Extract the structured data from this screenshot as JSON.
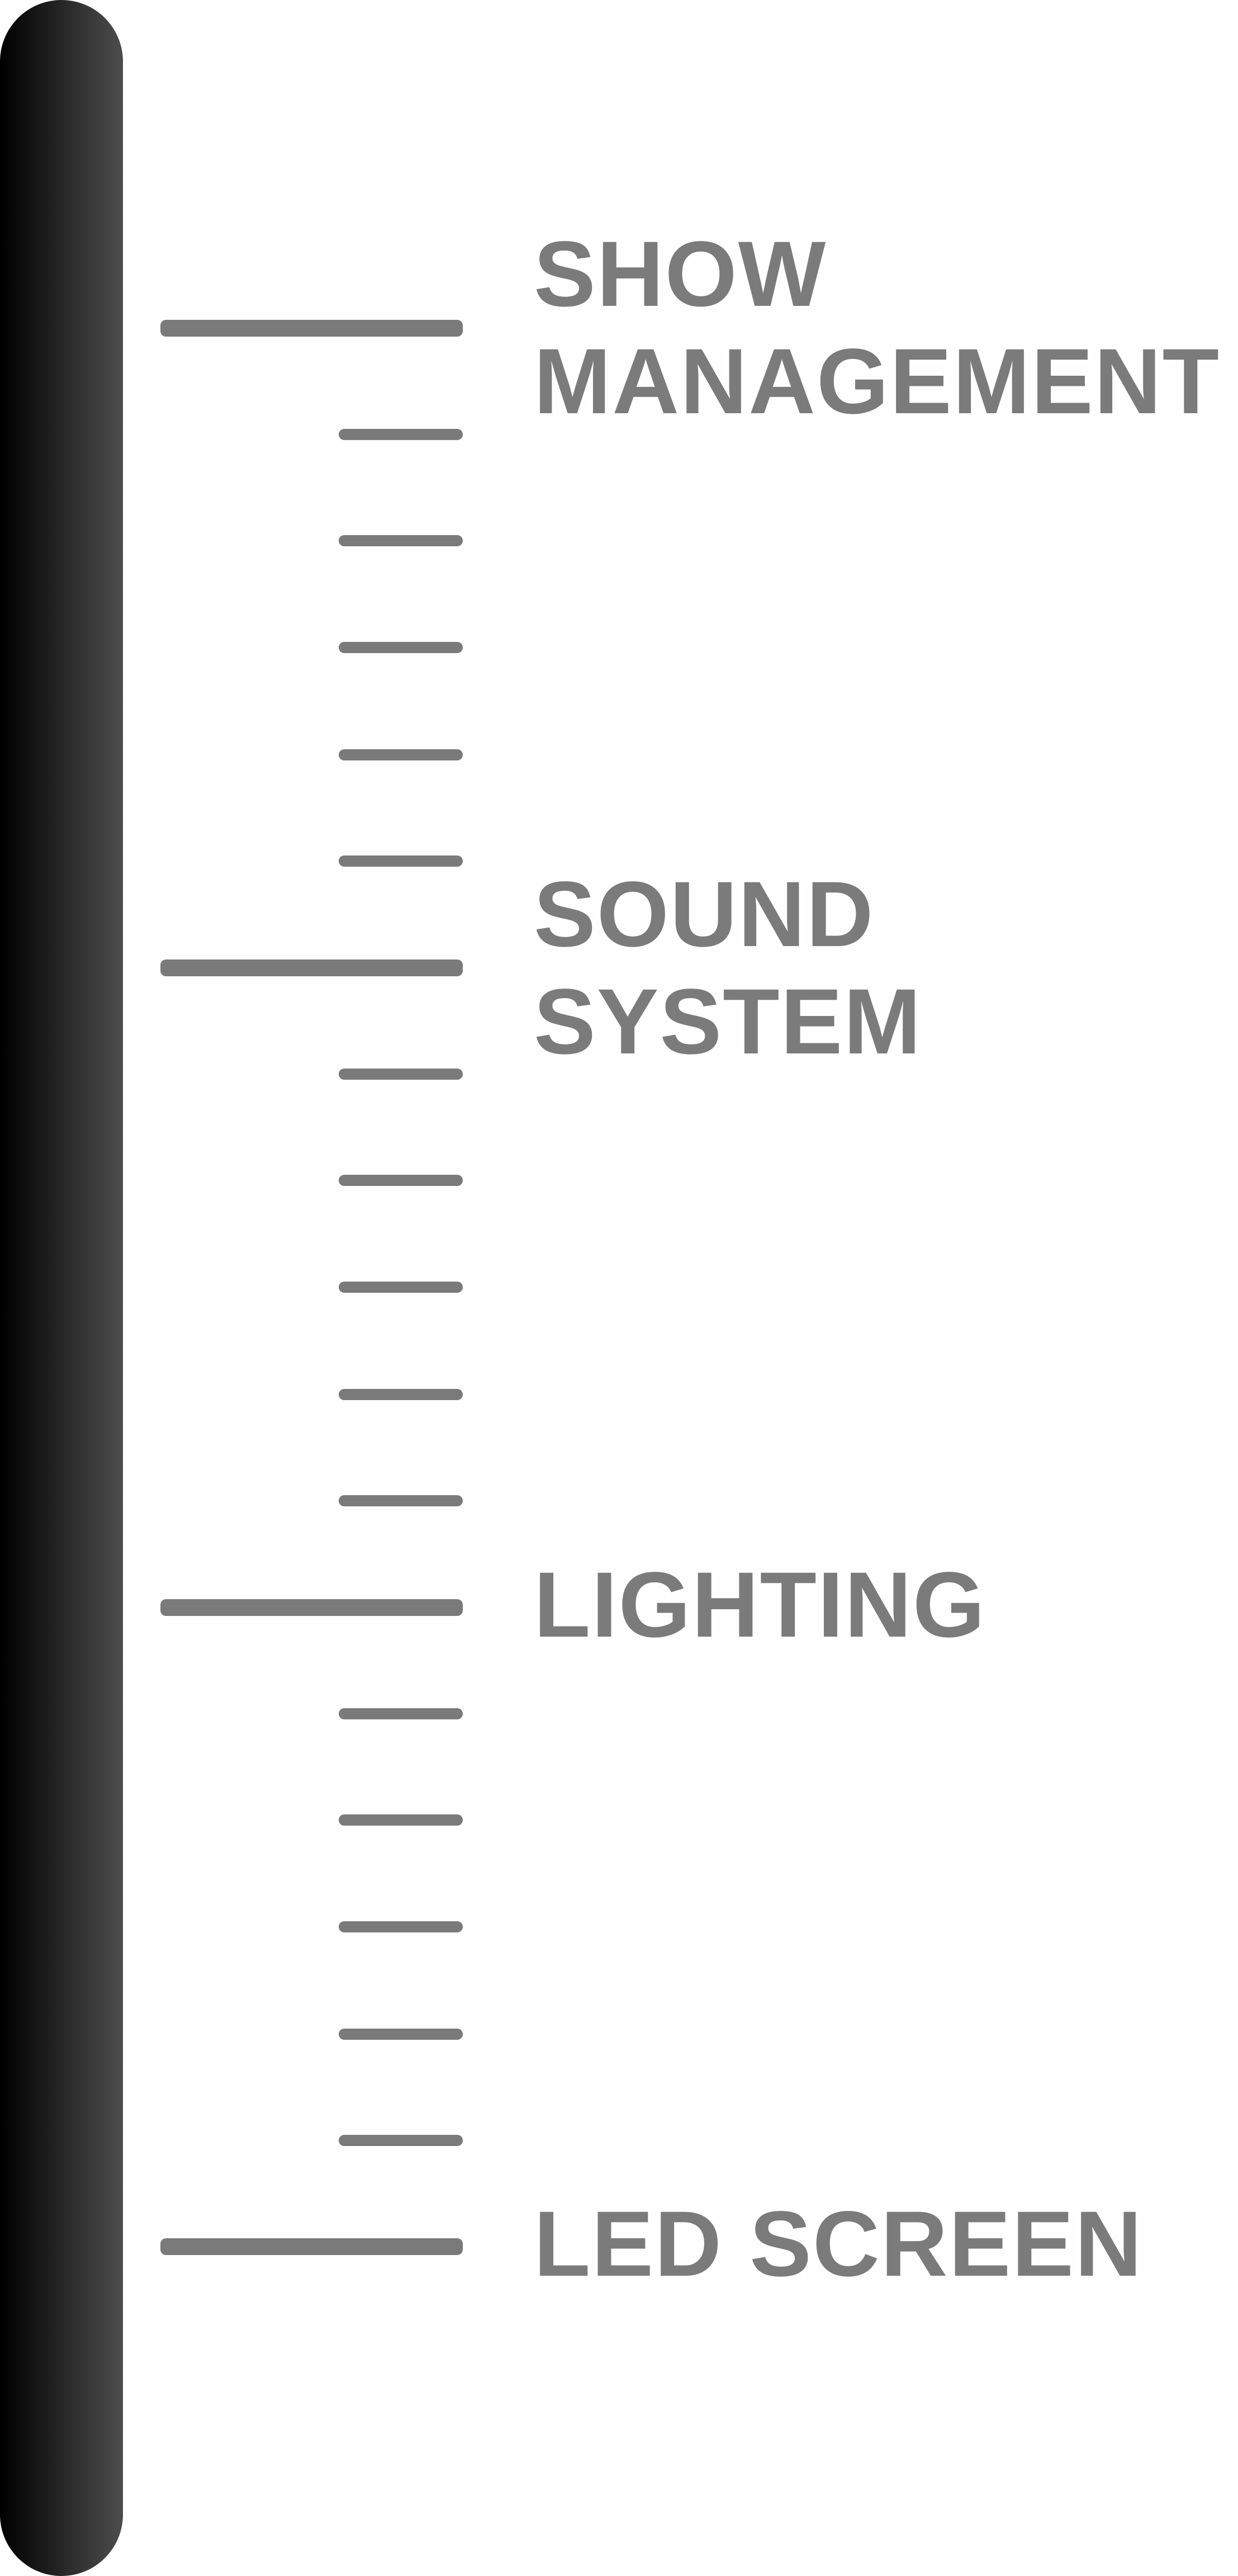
{
  "scale": {
    "items": [
      {
        "label": "SHOW\nMANAGEMENT"
      },
      {
        "label": "SOUND\nSYSTEM"
      },
      {
        "label": "LIGHTING"
      },
      {
        "label": "LED SCREEN"
      }
    ],
    "minor_ticks_between_labels": 5,
    "colors": {
      "bar_dark": "#000000",
      "bar_light": "#4d4d4d",
      "ticks_and_text": "#7a7a7a",
      "background": "#fefefe"
    }
  }
}
